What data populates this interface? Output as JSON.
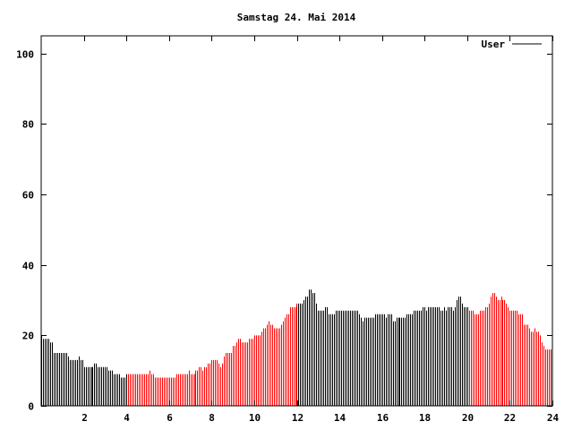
{
  "chart_data": {
    "type": "bar",
    "style": "impulses",
    "title": "Samstag 24. Mai 2014",
    "xlabel": "",
    "ylabel": "",
    "xlim": [
      0,
      24
    ],
    "ylim": [
      0,
      105
    ],
    "x_step_hours": 0.0833333,
    "xticks": [
      "2",
      "4",
      "6",
      "8",
      "10",
      "12",
      "14",
      "16",
      "18",
      "20",
      "22",
      "24"
    ],
    "yticks": [
      "0",
      "20",
      "40",
      "60",
      "80",
      "100"
    ],
    "grid": false,
    "legend": {
      "position": "top-right",
      "entries": [
        "User"
      ]
    },
    "colors": {
      "default": "#000000",
      "highlight": "#ff0000",
      "legend_line": "#000000"
    },
    "highlight_ranges_hours": [
      [
        4,
        12
      ],
      [
        20,
        24
      ]
    ],
    "series": [
      {
        "name": "User",
        "values": [
          20,
          19,
          19,
          19,
          19,
          18,
          18,
          15,
          15,
          15,
          15,
          15,
          15,
          15,
          15,
          14,
          13,
          13,
          13,
          13,
          13,
          14,
          13,
          13,
          11,
          11,
          11,
          11,
          11,
          11,
          12,
          12,
          11,
          11,
          11,
          11,
          11,
          11,
          10,
          10,
          10,
          9,
          9,
          9,
          9,
          8,
          8,
          8,
          9,
          9,
          9,
          9,
          9,
          9,
          9,
          9,
          9,
          9,
          9,
          9,
          9,
          10,
          9,
          9,
          8,
          8,
          8,
          8,
          8,
          8,
          8,
          8,
          8,
          8,
          8,
          8,
          9,
          9,
          9,
          9,
          9,
          9,
          9,
          10,
          9,
          9,
          9,
          10,
          10,
          11,
          11,
          10,
          11,
          11,
          12,
          12,
          13,
          13,
          13,
          13,
          12,
          11,
          12,
          14,
          15,
          15,
          15,
          15,
          17,
          17,
          18,
          19,
          19,
          18,
          18,
          18,
          18,
          19,
          19,
          19,
          20,
          20,
          20,
          20,
          21,
          22,
          22,
          23,
          24,
          23,
          23,
          22,
          22,
          22,
          22,
          23,
          24,
          25,
          26,
          26,
          28,
          28,
          28,
          28,
          29,
          29,
          29,
          29,
          30,
          31,
          31,
          33,
          33,
          32,
          32,
          29,
          27,
          27,
          27,
          27,
          28,
          28,
          26,
          26,
          26,
          26,
          27,
          27,
          27,
          27,
          27,
          27,
          27,
          27,
          27,
          27,
          27,
          27,
          27,
          26,
          25,
          24,
          25,
          25,
          25,
          25,
          25,
          25,
          26,
          26,
          26,
          26,
          26,
          26,
          25,
          26,
          26,
          26,
          24,
          24,
          25,
          25,
          25,
          25,
          25,
          25,
          26,
          26,
          26,
          26,
          27,
          27,
          27,
          27,
          27,
          28,
          28,
          27,
          28,
          28,
          28,
          28,
          28,
          28,
          28,
          27,
          27,
          28,
          27,
          28,
          28,
          28,
          27,
          28,
          30,
          31,
          31,
          29,
          28,
          28,
          28,
          27,
          27,
          27,
          26,
          26,
          26,
          27,
          27,
          27,
          28,
          28,
          29,
          31,
          32,
          32,
          31,
          30,
          30,
          31,
          30,
          30,
          29,
          28,
          27,
          27,
          27,
          27,
          27,
          26,
          26,
          26,
          23,
          23,
          23,
          22,
          21,
          21,
          22,
          21,
          21,
          20,
          18,
          17,
          16,
          16,
          16,
          16
        ]
      }
    ]
  }
}
